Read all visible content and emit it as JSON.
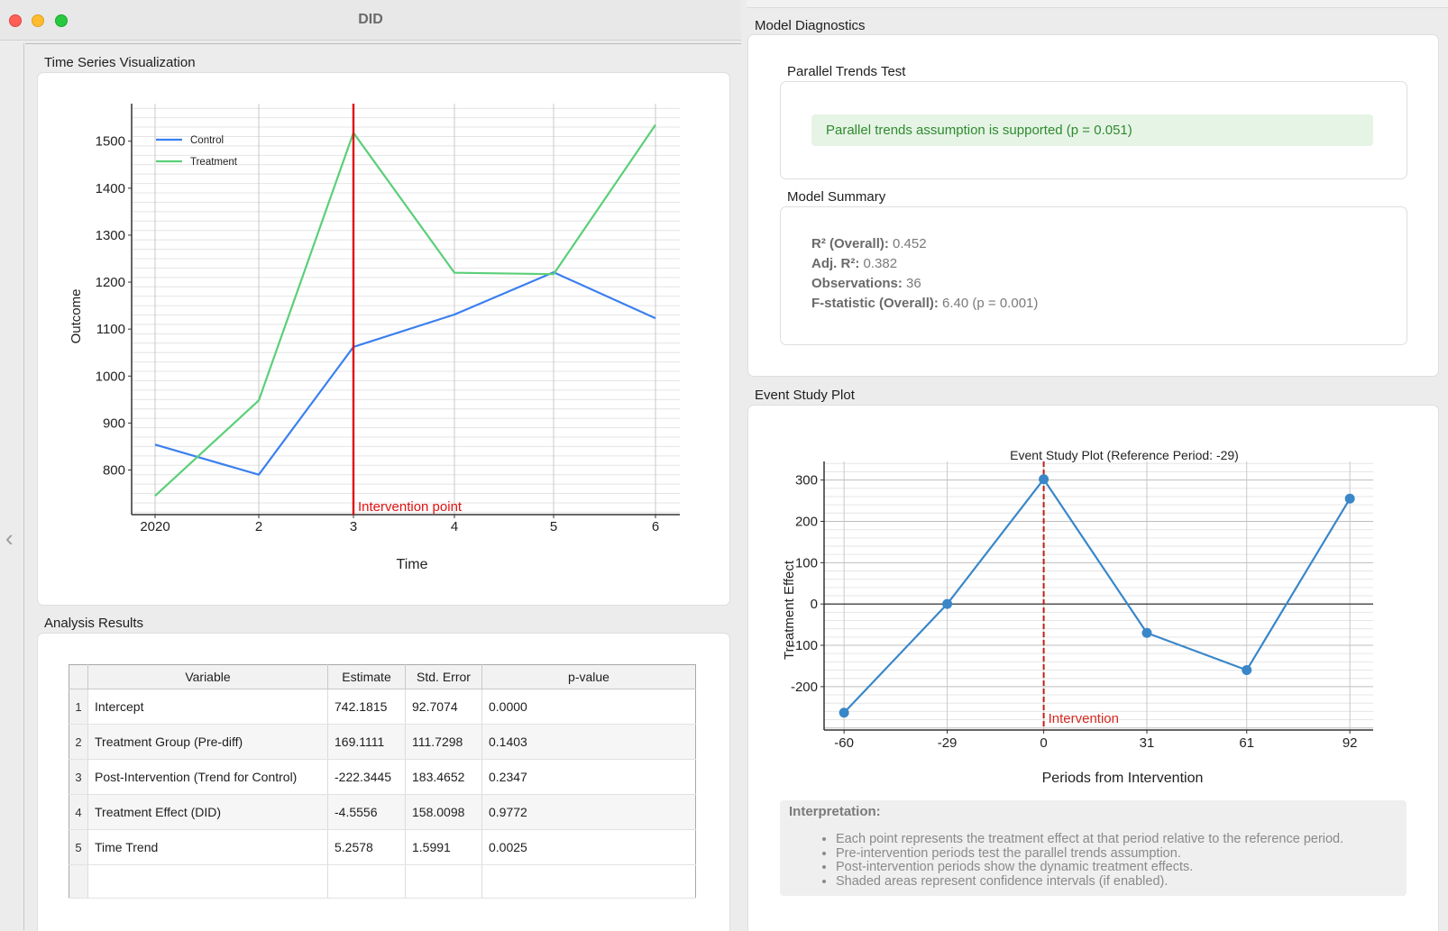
{
  "window": {
    "title": "DID"
  },
  "left": {
    "ts_group_title": "Time Series Visualization",
    "results_group_title": "Analysis Results"
  },
  "ts_chart": {
    "type": "line",
    "x": [
      "2020",
      "2",
      "3",
      "4",
      "5",
      "6"
    ],
    "series": [
      {
        "name": "Control",
        "color": "#3b7ff0",
        "values": [
          854,
          790,
          1062,
          1131,
          1221,
          1123
        ]
      },
      {
        "name": "Treatment",
        "color": "#5bcf78",
        "values": [
          745,
          948,
          1518,
          1220,
          1217,
          1535
        ]
      }
    ],
    "ylabel": "Outcome",
    "xlabel": "Time",
    "yticks": [
      "800",
      "900",
      "1000",
      "1100",
      "1200",
      "1300",
      "1400",
      "1500"
    ],
    "ylim": [
      705,
      1580
    ],
    "intervention_label": "Intervention point",
    "intervention_x": 2,
    "intervention_color": "#e01010",
    "legend_position": "upper-left",
    "grid": true
  },
  "results_table": {
    "columns": [
      "Variable",
      "Estimate",
      "Std. Error",
      "p-value"
    ],
    "rows": [
      {
        "n": "1",
        "variable": "Intercept",
        "estimate": "742.1815",
        "std_error": "92.7074",
        "p_value": "0.0000"
      },
      {
        "n": "2",
        "variable": "Treatment Group (Pre-diff)",
        "estimate": "169.1111",
        "std_error": "111.7298",
        "p_value": "0.1403"
      },
      {
        "n": "3",
        "variable": "Post-Intervention (Trend for Control)",
        "estimate": "-222.3445",
        "std_error": "183.4652",
        "p_value": "0.2347"
      },
      {
        "n": "4",
        "variable": "Treatment Effect (DID)",
        "estimate": "-4.5556",
        "std_error": "158.0098",
        "p_value": "0.9772"
      },
      {
        "n": "5",
        "variable": "Time Trend",
        "estimate": "5.2578",
        "std_error": "1.5991",
        "p_value": "0.0025"
      }
    ]
  },
  "diagnostics": {
    "group_title": "Model Diagnostics",
    "parallel_title": "Parallel Trends Test",
    "parallel_message": "Parallel trends assumption is supported (p = 0.051)",
    "summary_title": "Model Summary",
    "summary": {
      "r2_label": "R² (Overall):",
      "r2_value": "0.452",
      "adj_r2_label": "Adj. R²:",
      "adj_r2_value": "0.382",
      "obs_label": "Observations:",
      "obs_value": "36",
      "f_label": "F-statistic (Overall):",
      "f_value": "6.40 (p = 0.001)"
    }
  },
  "event_study": {
    "group_title": "Event Study Plot",
    "interp_title": "Interpretation:",
    "interp_items": [
      "Each point represents the treatment effect at that period relative to the reference period.",
      "Pre-intervention periods test the parallel trends assumption.",
      "Post-intervention periods show the dynamic treatment effects.",
      "Shaded areas represent confidence intervals (if enabled)."
    ]
  },
  "es_chart": {
    "type": "line",
    "title": "Event Study Plot (Reference Period: -29)",
    "xlabel": "Periods from Intervention",
    "ylabel": "Treatment Effect",
    "x": [
      -60,
      -29,
      0,
      31,
      61,
      92
    ],
    "xticks": [
      "-60",
      "-29",
      "0",
      "31",
      "61",
      "92"
    ],
    "values": [
      -263,
      0,
      302,
      -70,
      -160,
      255
    ],
    "yticks": [
      "-200",
      "-100",
      "0",
      "100",
      "200",
      "300"
    ],
    "xlim": [
      -66,
      99
    ],
    "ylim": [
      -305,
      345
    ],
    "color": "#3a87c8",
    "intervention_label": "Intervention",
    "intervention_color": "#c0201a",
    "grid": true
  }
}
